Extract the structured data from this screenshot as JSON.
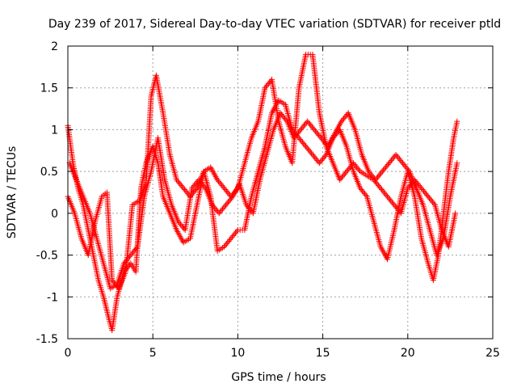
{
  "chart_data": {
    "type": "scatter",
    "title": "Day 239 of 2017, Sidereal Day-to-day VTEC variation (SDTVAR) for receiver ptld",
    "xlabel": "GPS time / hours",
    "ylabel": "SDTVAR / TECUs",
    "xlim": [
      0,
      25
    ],
    "ylim": [
      -1.5,
      2
    ],
    "xticks": [
      "0",
      "5",
      "10",
      "15",
      "20",
      "25"
    ],
    "yticks": [
      "-1.5",
      "-1",
      "-0.5",
      "0",
      "0.5",
      "1",
      "1.5",
      "2"
    ],
    "grid": true,
    "marker": "+",
    "color": "#ff0000",
    "series": [
      {
        "x": [
          0.0,
          0.3,
          0.6,
          0.9,
          1.2,
          1.5,
          1.8,
          2.1,
          2.4,
          2.6,
          2.9,
          3.3,
          3.7,
          4.0,
          4.3,
          4.6,
          5.0,
          5.3,
          5.6,
          6.0,
          6.4,
          6.8,
          7.2,
          7.6,
          8.0,
          8.4,
          8.8,
          9.2,
          9.6,
          10.0,
          10.4,
          10.8,
          11.2,
          11.6,
          12.0,
          12.4,
          12.8,
          13.2,
          13.6,
          14.0,
          14.4,
          14.8,
          15.2,
          15.6,
          16.0,
          16.4,
          16.8,
          17.2,
          17.6,
          18.0,
          18.4,
          18.8,
          19.2,
          19.6,
          20.0,
          20.4,
          20.8,
          21.2,
          21.5,
          21.8,
          22.1,
          22.4,
          22.7,
          22.9
        ],
        "y": [
          1.05,
          0.6,
          0.3,
          0.1,
          -0.2,
          -0.5,
          -0.8,
          -1.0,
          -1.25,
          -1.4,
          -1.0,
          -0.7,
          -0.6,
          -0.7,
          0.3,
          0.6,
          0.8,
          0.6,
          0.2,
          0.0,
          -0.2,
          -0.35,
          -0.3,
          0.1,
          0.5,
          0.2,
          -0.45,
          -0.4,
          -0.3,
          -0.2,
          -0.2,
          0.2,
          0.5,
          0.8,
          1.2,
          1.35,
          1.3,
          1.0,
          0.9,
          0.8,
          0.7,
          0.6,
          0.7,
          0.9,
          1.0,
          0.8,
          0.5,
          0.3,
          0.2,
          -0.1,
          -0.4,
          -0.55,
          -0.2,
          0.2,
          0.5,
          0.2,
          -0.3,
          -0.6,
          -0.8,
          -0.5,
          0.0,
          0.5,
          0.9,
          1.1
        ]
      },
      {
        "x": [
          0.0,
          0.4,
          0.8,
          1.2,
          1.6,
          2.0,
          2.3,
          2.6,
          3.0,
          3.4,
          3.8,
          4.2,
          4.6,
          4.9,
          5.2,
          5.6,
          6.0,
          6.4,
          6.8,
          7.2,
          7.6,
          8.0,
          8.4,
          8.8,
          9.2,
          9.6,
          10.0,
          10.4,
          10.8,
          11.2,
          11.6,
          12.0,
          12.4,
          12.8,
          13.2,
          13.6,
          14.0,
          14.4,
          14.8,
          15.2,
          15.6,
          16.0,
          16.4,
          16.8,
          17.2,
          17.6,
          18.0,
          18.4,
          18.8,
          19.2,
          19.6,
          20.0,
          20.4,
          20.8,
          21.2,
          21.6,
          22.0,
          22.4,
          22.8
        ],
        "y": [
          0.2,
          0.0,
          -0.3,
          -0.5,
          -0.1,
          0.2,
          0.25,
          -0.8,
          -0.9,
          -0.7,
          0.1,
          0.15,
          0.35,
          1.4,
          1.65,
          1.2,
          0.7,
          0.4,
          0.3,
          0.2,
          0.3,
          0.5,
          0.55,
          0.4,
          0.3,
          0.2,
          0.3,
          0.6,
          0.9,
          1.1,
          1.5,
          1.6,
          1.1,
          0.8,
          0.6,
          1.5,
          1.9,
          1.9,
          1.2,
          0.8,
          0.6,
          0.4,
          0.5,
          0.6,
          0.5,
          0.45,
          0.4,
          0.3,
          0.2,
          0.1,
          0.0,
          0.3,
          0.4,
          0.3,
          0.2,
          0.1,
          -0.2,
          -0.4,
          0.0
        ]
      },
      {
        "x": [
          0.1,
          0.5,
          0.9,
          1.3,
          1.7,
          2.1,
          2.5,
          2.9,
          3.3,
          3.7,
          4.1,
          4.5,
          4.9,
          5.3,
          5.7,
          6.1,
          6.5,
          6.9,
          7.3,
          7.7,
          8.1,
          8.5,
          8.9,
          9.3,
          9.7,
          10.1,
          10.5,
          10.9,
          11.3,
          11.7,
          12.1,
          12.5,
          12.9,
          13.3,
          13.7,
          14.1,
          14.5,
          14.9,
          15.3,
          15.7,
          16.1,
          16.5,
          16.9,
          17.3,
          17.7,
          18.1,
          18.5,
          18.9,
          19.3,
          19.7,
          20.1,
          20.5,
          20.9,
          21.3,
          21.7,
          22.1,
          22.5,
          22.9
        ],
        "y": [
          0.6,
          0.4,
          0.2,
          0.0,
          -0.3,
          -0.6,
          -0.9,
          -0.85,
          -0.6,
          -0.5,
          -0.4,
          0.2,
          0.5,
          0.9,
          0.4,
          0.1,
          -0.1,
          -0.2,
          0.3,
          0.4,
          0.3,
          0.1,
          0.0,
          0.1,
          0.2,
          0.35,
          0.1,
          0.0,
          0.4,
          0.7,
          1.0,
          1.2,
          1.1,
          0.9,
          1.0,
          1.1,
          1.0,
          0.9,
          0.8,
          0.95,
          1.1,
          1.2,
          1.0,
          0.7,
          0.5,
          0.4,
          0.5,
          0.6,
          0.7,
          0.6,
          0.5,
          0.3,
          0.1,
          -0.2,
          -0.5,
          -0.3,
          0.2,
          0.6
        ]
      }
    ]
  }
}
